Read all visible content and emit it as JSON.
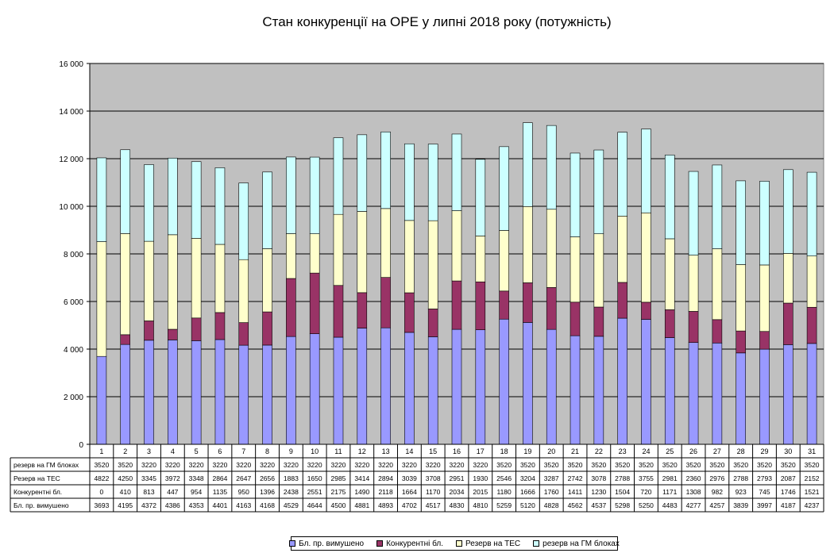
{
  "chart_data": {
    "type": "bar",
    "stacked": true,
    "title": "Стан конкуренції на ОРЕ  у липні  2018 року (потужність)",
    "xlabel": "",
    "ylabel": "",
    "ylim": [
      0,
      16000
    ],
    "yticks": [
      "0",
      "2 000",
      "4 000",
      "6 000",
      "8 000",
      "10 000",
      "12 000",
      "14 000",
      "16 000"
    ],
    "grid": true,
    "legend_position": "bottom",
    "categories": [
      "1",
      "2",
      "3",
      "4",
      "5",
      "6",
      "7",
      "8",
      "9",
      "10",
      "11",
      "12",
      "13",
      "14",
      "15",
      "16",
      "17",
      "18",
      "19",
      "20",
      "21",
      "22",
      "23",
      "24",
      "25",
      "26",
      "27",
      "28",
      "29",
      "30",
      "31"
    ],
    "series": [
      {
        "name": "Бл. пр. вимушено",
        "color": "#9999ff",
        "values": [
          3693,
          4195,
          4372,
          4386,
          4353,
          4401,
          4163,
          4168,
          4529,
          4644,
          4500,
          4881,
          4893,
          4702,
          4517,
          4830,
          4810,
          5259,
          5120,
          4828,
          4562,
          4537,
          5298,
          5250,
          4483,
          4277,
          4257,
          3839,
          3997,
          4187,
          4237
        ]
      },
      {
        "name": "Конкурентні бл.",
        "color": "#993366",
        "values": [
          0,
          410,
          813,
          447,
          954,
          1135,
          950,
          1396,
          2438,
          2551,
          2175,
          1490,
          2118,
          1664,
          1170,
          2034,
          2015,
          1180,
          1666,
          1760,
          1411,
          1230,
          1504,
          720,
          1171,
          1308,
          982,
          923,
          745,
          1746,
          1521
        ]
      },
      {
        "name": "Резерв на ТЕС",
        "color": "#ffffcc",
        "values": [
          4822,
          4250,
          3345,
          3972,
          3348,
          2864,
          2647,
          2656,
          1883,
          1650,
          2985,
          3414,
          2894,
          3039,
          3708,
          2951,
          1930,
          2546,
          3204,
          3287,
          2742,
          3078,
          2788,
          3755,
          2981,
          2360,
          2976,
          2788,
          2793,
          2087,
          2152
        ]
      },
      {
        "name": "резерв на ГМ блоках",
        "color": "#ccffff",
        "values": [
          3520,
          3520,
          3220,
          3220,
          3220,
          3220,
          3220,
          3220,
          3220,
          3220,
          3220,
          3220,
          3220,
          3220,
          3220,
          3220,
          3220,
          3520,
          3520,
          3520,
          3520,
          3520,
          3520,
          3520,
          3520,
          3520,
          3520,
          3520,
          3520,
          3520,
          3520
        ]
      }
    ],
    "table_row_order": [
      "резерв на ГМ блоках",
      "Резерв на ТЕС",
      "Конкурентні бл.",
      "Бл. пр. вимушено"
    ],
    "table_row_labels": [
      "резерв  на ГМ блоках",
      "Резерв на ТЕС",
      "Конкурентні бл.",
      "Бл. пр. вимушено"
    ],
    "plot_background": "#c0c0c0"
  }
}
